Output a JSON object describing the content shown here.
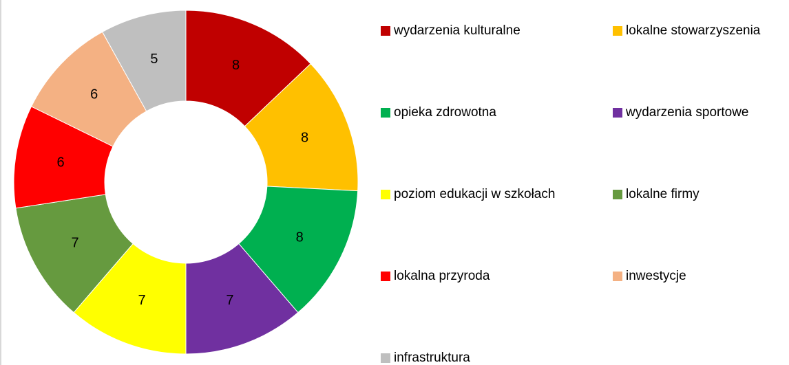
{
  "chart_data": {
    "type": "pie",
    "categories": [
      "wydarzenia kulturalne",
      "lokalne stowarzyszenia",
      "opieka zdrowotna",
      "wydarzenia sportowe",
      "poziom edukacji w szkołach",
      "lokalne firmy",
      "lokalna przyroda",
      "inwestycje",
      "infrastruktura"
    ],
    "values": [
      8,
      8,
      8,
      7,
      7,
      7,
      6,
      6,
      5
    ],
    "colors": [
      "#C00000",
      "#FFC000",
      "#00B050",
      "#7030A0",
      "#FFFF00",
      "#669A3F",
      "#FF0000",
      "#F4B183",
      "#BFBFBF"
    ],
    "donut": true,
    "legend": "right"
  }
}
